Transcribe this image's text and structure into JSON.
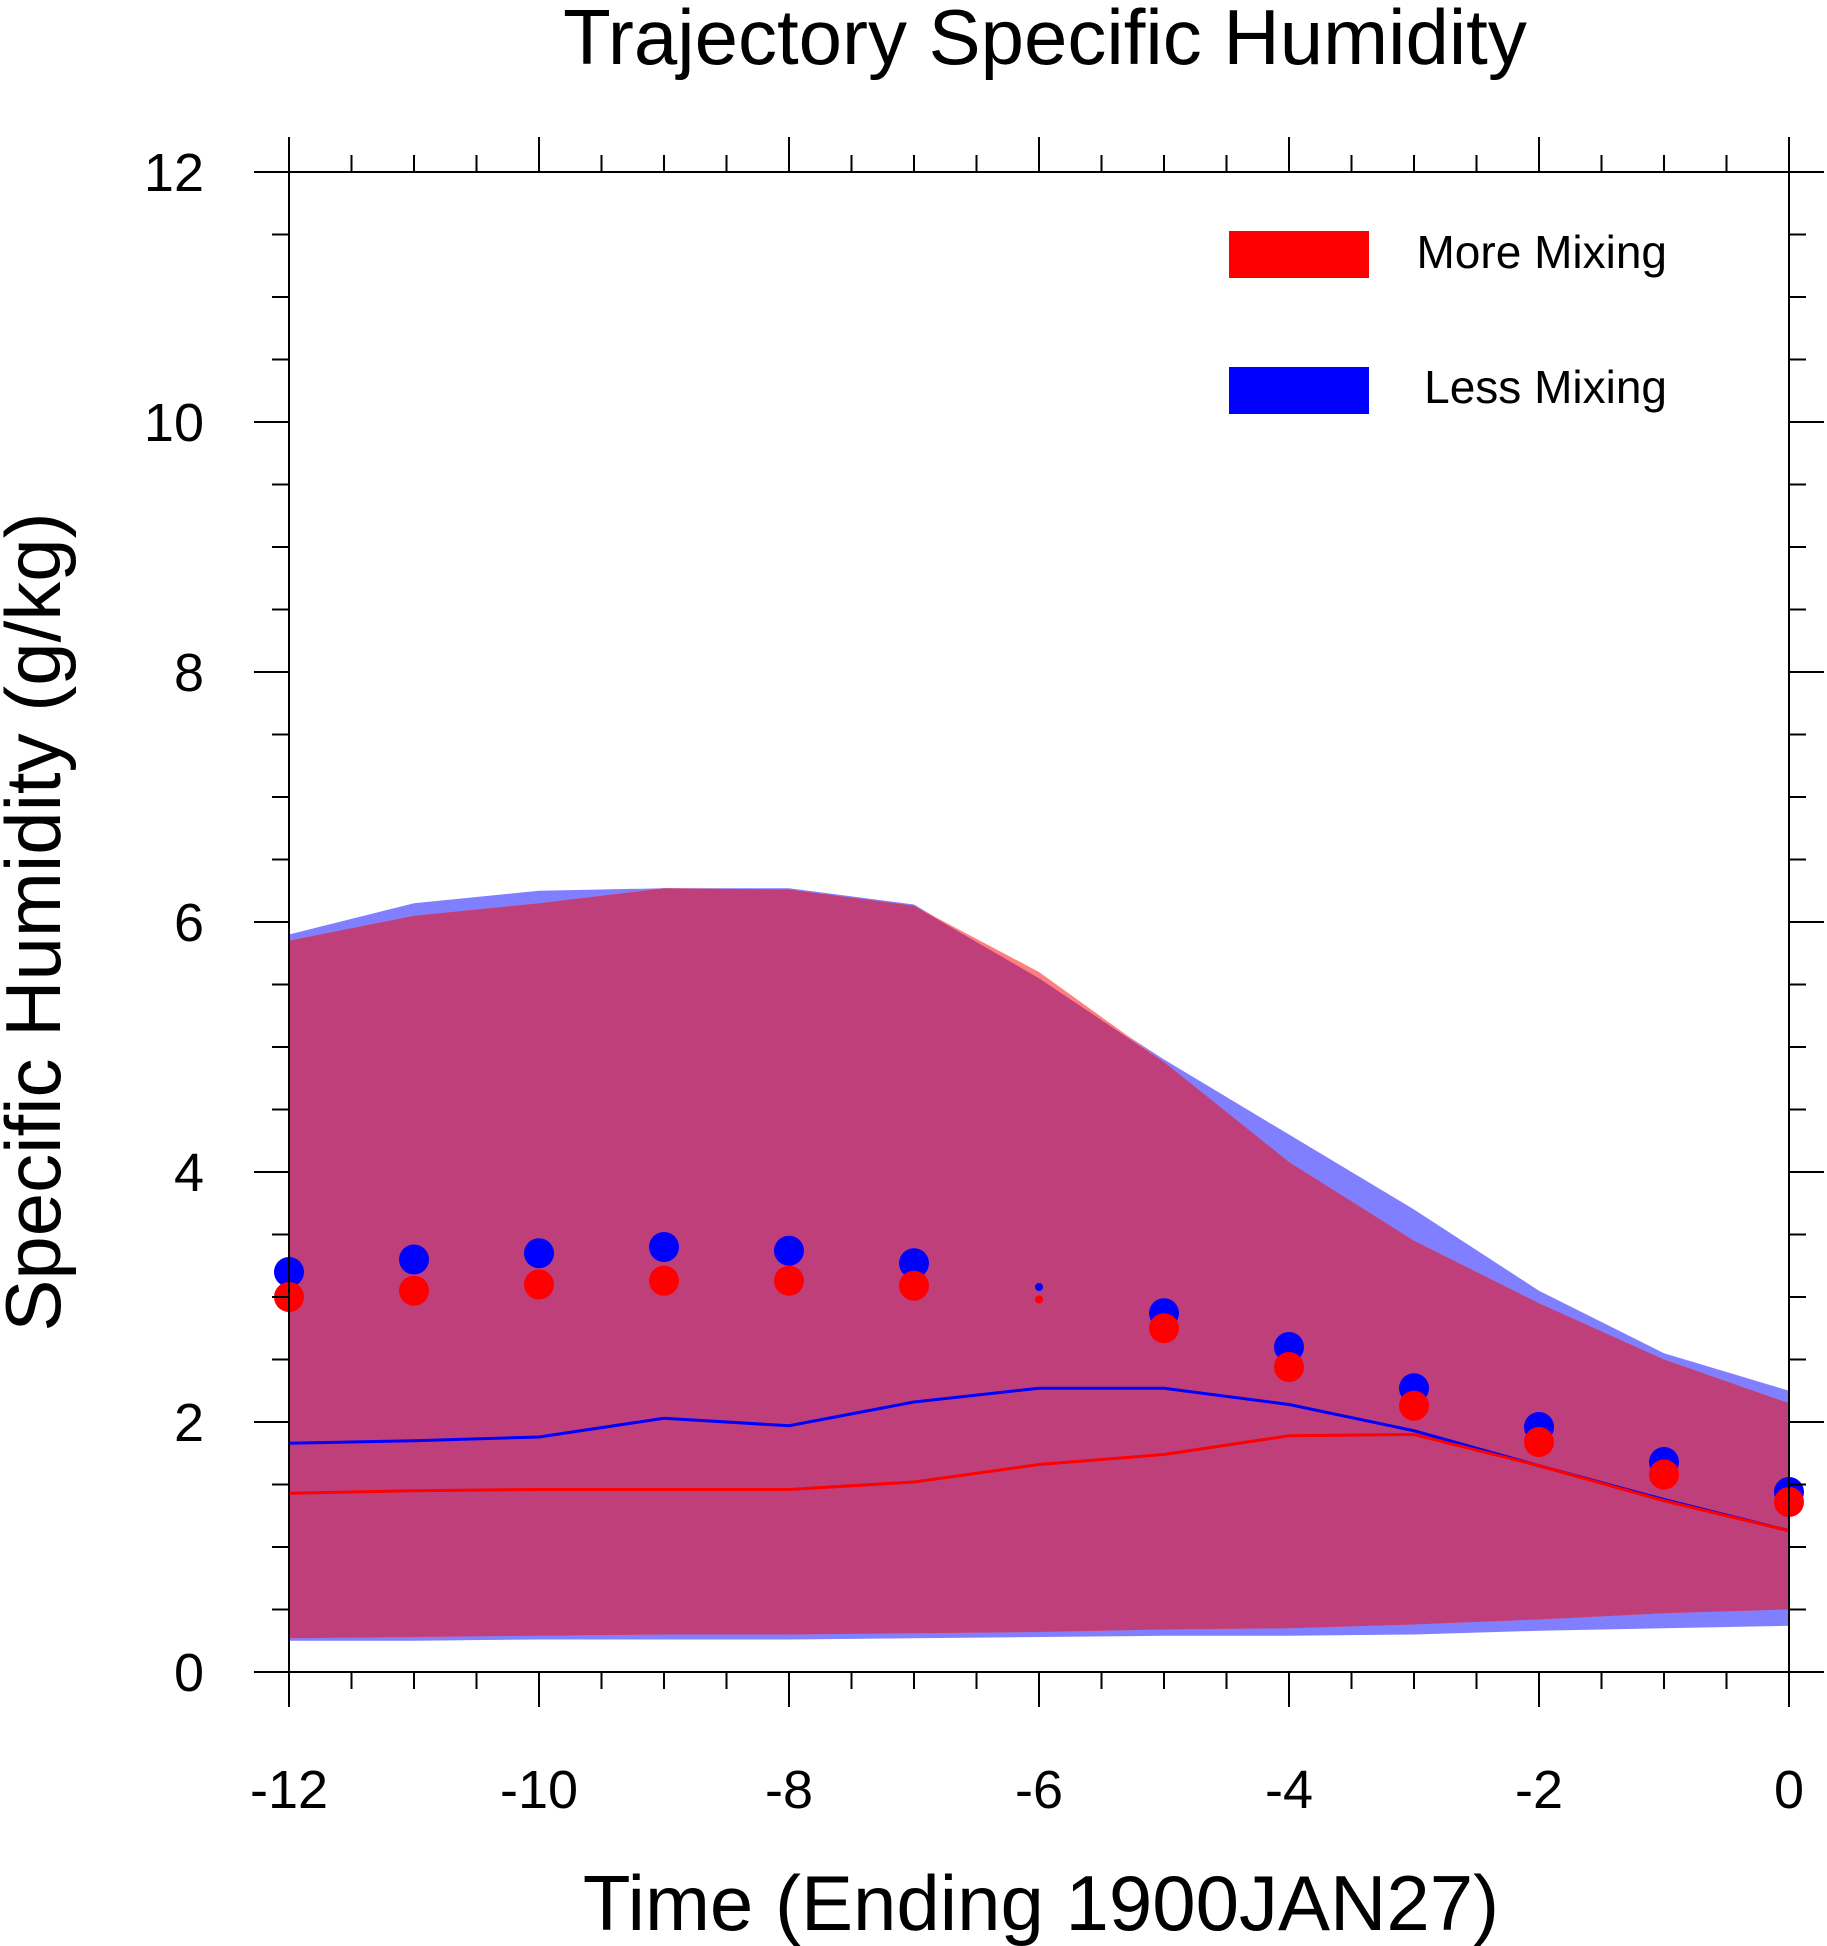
{
  "chart_data": {
    "type": "line",
    "title": "Trajectory Specific Humidity",
    "xlabel": "Time (Ending 1900JAN27)",
    "ylabel": "Specific Humidity (g/kg)",
    "xlim": [
      -12,
      0
    ],
    "ylim": [
      0,
      12
    ],
    "x_ticks": [
      -12,
      -10,
      -8,
      -6,
      -4,
      -2,
      0
    ],
    "x_tick_labels": [
      "-12",
      "-10",
      "-8",
      "-6",
      "-4",
      "-2",
      "0"
    ],
    "y_ticks": [
      0,
      2,
      4,
      6,
      8,
      10,
      12
    ],
    "y_tick_labels": [
      "0",
      "2",
      "4",
      "6",
      "8",
      "10",
      "12"
    ],
    "grid": false,
    "legend_position": "top-right",
    "x": [
      -12,
      -11,
      -10,
      -9,
      -8,
      -7,
      -6,
      -5,
      -4,
      -3,
      -2,
      -1,
      0
    ],
    "series": [
      {
        "name": "Less Mixing",
        "color": "#0000ff",
        "band_color": "#7f7fff",
        "band_upper": [
          5.9,
          6.15,
          6.25,
          6.27,
          6.27,
          6.14,
          5.55,
          4.9,
          4.3,
          3.7,
          3.05,
          2.55,
          2.25
        ],
        "band_lower": [
          0.25,
          0.25,
          0.26,
          0.26,
          0.26,
          0.27,
          0.28,
          0.29,
          0.29,
          0.3,
          0.33,
          0.35,
          0.37
        ],
        "mean": [
          3.2,
          3.3,
          3.35,
          3.4,
          3.37,
          3.27,
          3.08,
          2.87,
          2.6,
          2.27,
          1.96,
          1.68,
          1.44
        ],
        "median": [
          1.83,
          1.85,
          1.88,
          2.03,
          1.97,
          2.16,
          2.27,
          2.27,
          2.14,
          1.93,
          1.65,
          1.38,
          1.13
        ]
      },
      {
        "name": "More Mixing",
        "color": "#ff0000",
        "band_color": "#ff7f7f",
        "band_upper": [
          5.85,
          6.05,
          6.15,
          6.27,
          6.26,
          6.13,
          5.6,
          4.88,
          4.08,
          3.45,
          2.95,
          2.5,
          2.15
        ],
        "band_lower": [
          0.27,
          0.28,
          0.29,
          0.3,
          0.3,
          0.31,
          0.32,
          0.34,
          0.35,
          0.38,
          0.42,
          0.47,
          0.5
        ],
        "mean": [
          3.0,
          3.05,
          3.1,
          3.13,
          3.13,
          3.09,
          2.98,
          2.75,
          2.44,
          2.13,
          1.84,
          1.58,
          1.36
        ],
        "median": [
          1.43,
          1.45,
          1.46,
          1.46,
          1.46,
          1.52,
          1.66,
          1.74,
          1.89,
          1.9,
          1.65,
          1.37,
          1.13
        ]
      }
    ],
    "overlap_color": "#bf3f7a"
  }
}
